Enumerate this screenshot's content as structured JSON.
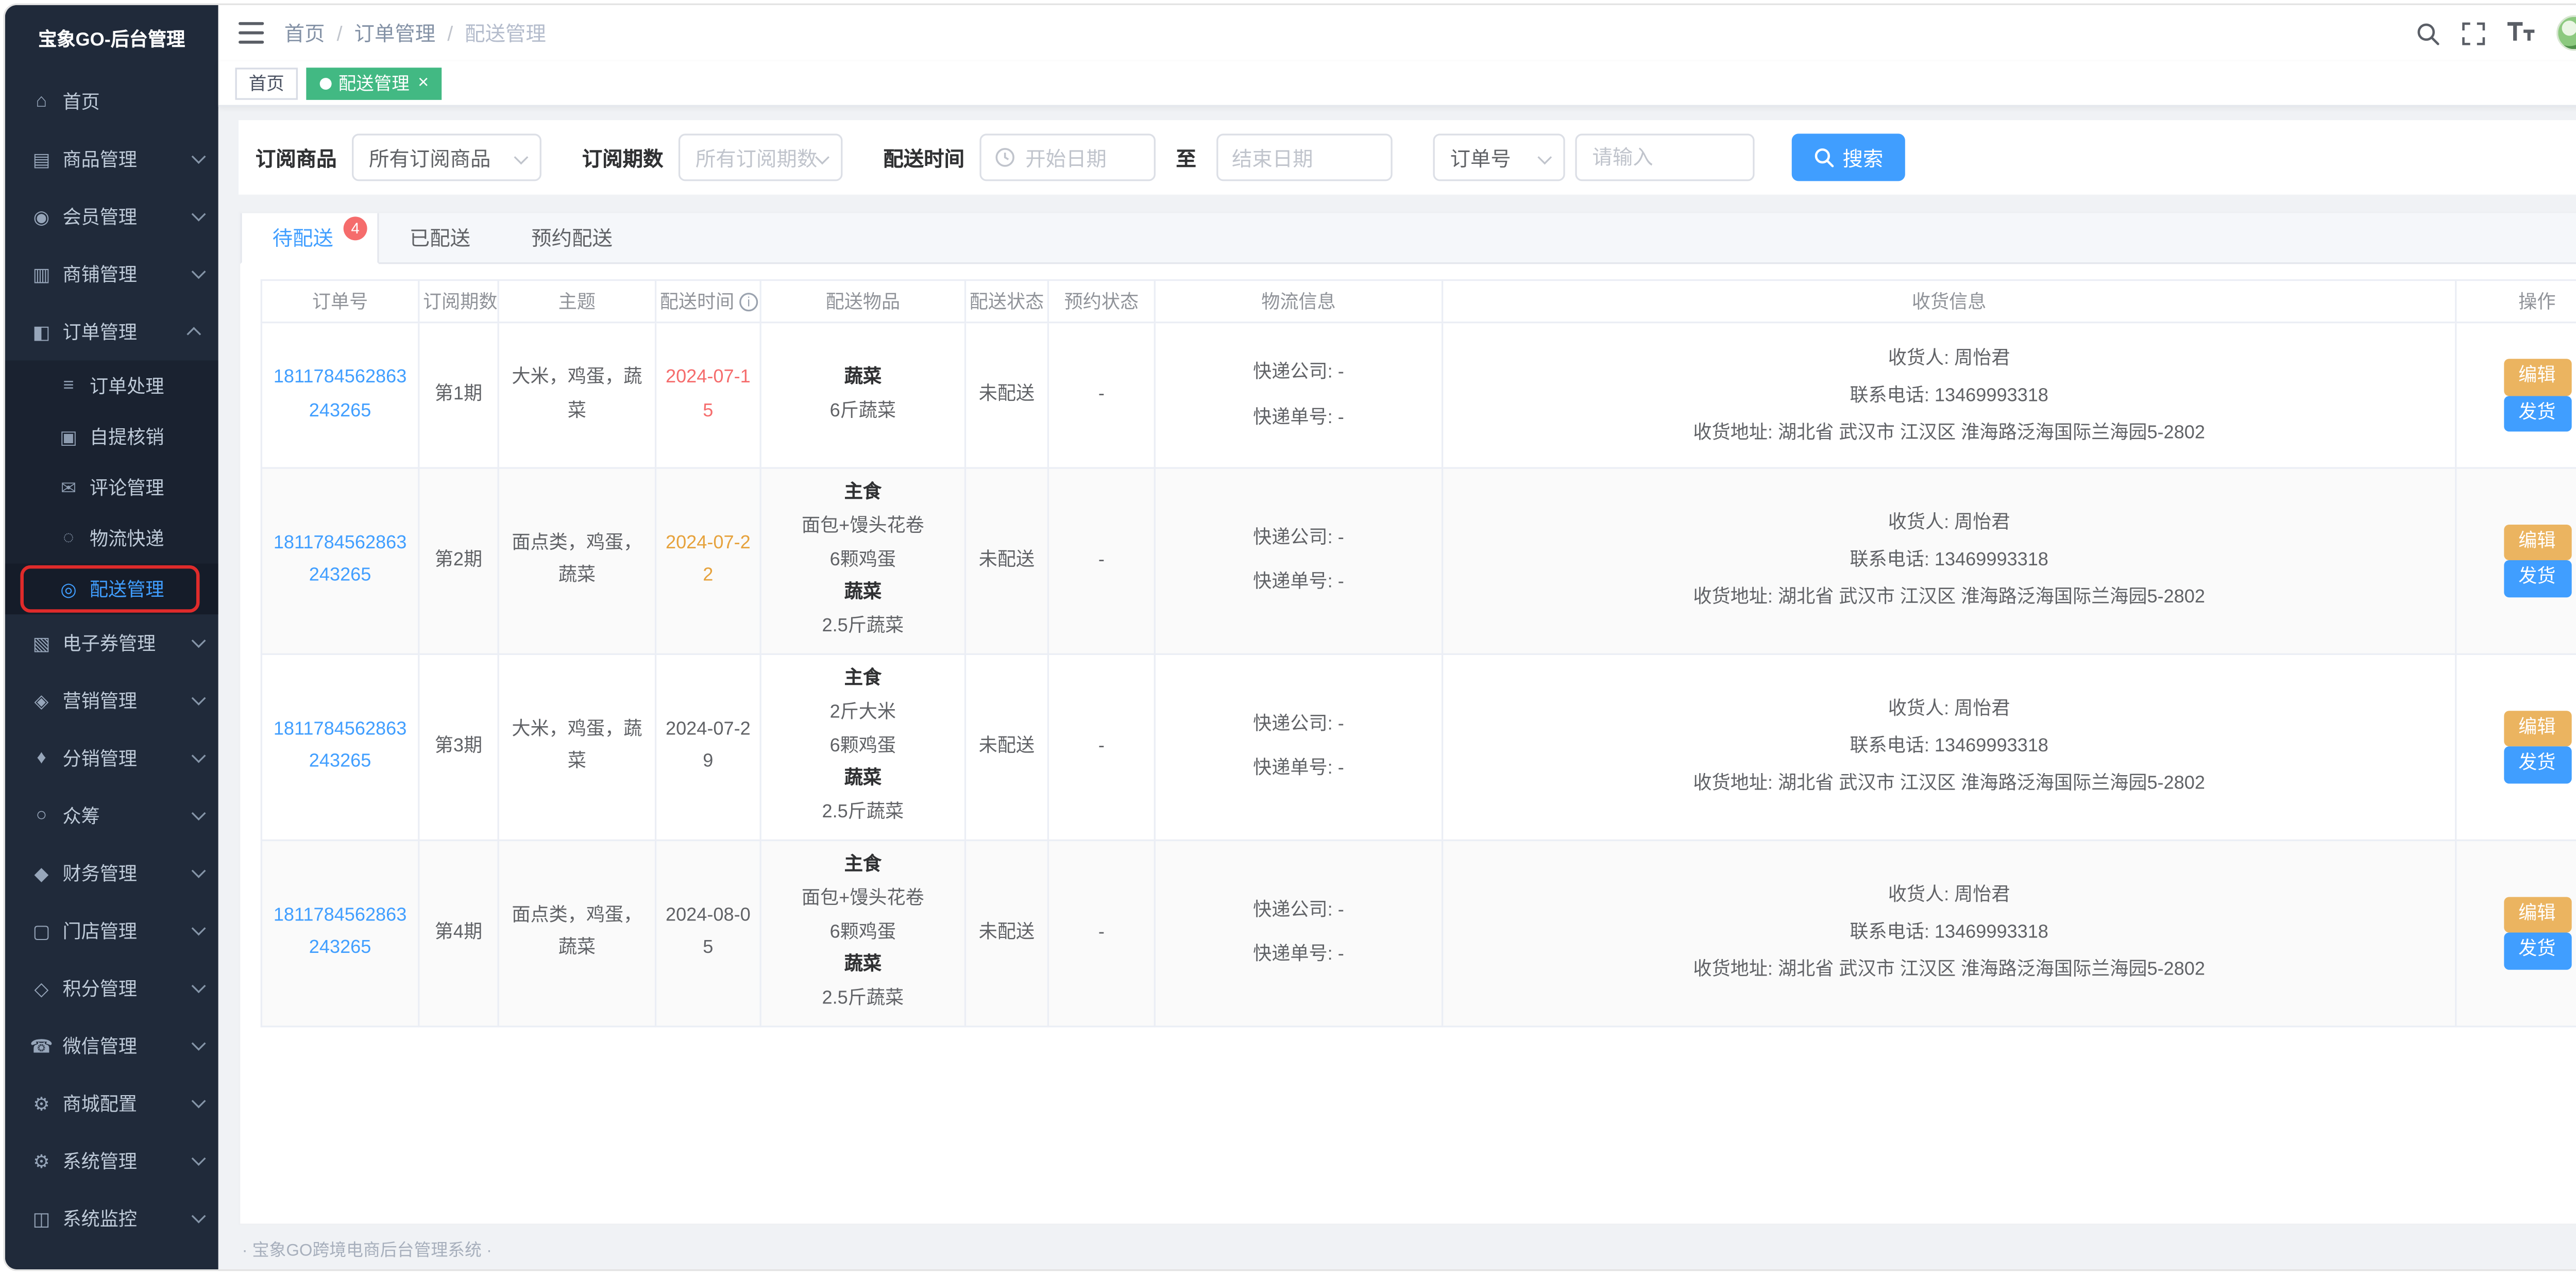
{
  "app": {
    "title": "宝象GO-后台管理",
    "footer": "· 宝象GO跨境电商后台管理系统 ·"
  },
  "colors": {
    "primary": "#409eff",
    "warning": "#e6a23c",
    "danger": "#f56c6c",
    "tag_active_green": "#42b983",
    "sidebar_bg": "#202a3a",
    "highlight_annotation": "#e02b2b"
  },
  "navbar": {
    "breadcrumb": [
      "首页",
      "订单管理",
      "配送管理"
    ],
    "separator": "/"
  },
  "tags_view": [
    {
      "key": "home",
      "label": "首页",
      "active": false,
      "closable": false
    },
    {
      "key": "delivery-manage",
      "label": "配送管理",
      "active": true,
      "closable": true
    }
  ],
  "sidebar": {
    "items": [
      {
        "key": "home",
        "label": "首页",
        "icon": "home-icon"
      },
      {
        "key": "goods",
        "label": "商品管理",
        "icon": "goods-icon",
        "arrow": true
      },
      {
        "key": "members",
        "label": "会员管理",
        "icon": "members-icon",
        "arrow": true
      },
      {
        "key": "shop",
        "label": "商铺管理",
        "icon": "shop-icon",
        "arrow": true
      },
      {
        "key": "orders",
        "label": "订单管理",
        "icon": "orders-icon",
        "arrow": true,
        "expanded": true,
        "children": [
          {
            "key": "order-process",
            "label": "订单处理",
            "icon": "order-process-icon"
          },
          {
            "key": "pickup-verify",
            "label": "自提核销",
            "icon": "pickup-verify-icon"
          },
          {
            "key": "comment-manage",
            "label": "评论管理",
            "icon": "comment-manage-icon"
          },
          {
            "key": "logistics-express",
            "label": "物流快递",
            "icon": "logistics-express-icon"
          },
          {
            "key": "delivery-manage",
            "label": "配送管理",
            "icon": "delivery-manage-icon",
            "active": true,
            "highlight": true
          }
        ]
      },
      {
        "key": "coupons",
        "label": "电子券管理",
        "icon": "coupons-icon",
        "arrow": true
      },
      {
        "key": "marketing",
        "label": "营销管理",
        "icon": "marketing-icon",
        "arrow": true
      },
      {
        "key": "distribution",
        "label": "分销管理",
        "icon": "distribution-icon",
        "arrow": true
      },
      {
        "key": "crowdfunding",
        "label": "众筹",
        "icon": "crowdfunding-icon",
        "arrow": true
      },
      {
        "key": "finance",
        "label": "财务管理",
        "icon": "finance-icon",
        "arrow": true
      },
      {
        "key": "stores",
        "label": "门店管理",
        "icon": "stores-icon",
        "arrow": true
      },
      {
        "key": "points",
        "label": "积分管理",
        "icon": "points-icon",
        "arrow": true
      },
      {
        "key": "wechat",
        "label": "微信管理",
        "icon": "wechat-icon",
        "arrow": true
      },
      {
        "key": "mall-config",
        "label": "商城配置",
        "icon": "mall-config-icon",
        "arrow": true
      },
      {
        "key": "system",
        "label": "系统管理",
        "icon": "system-icon",
        "arrow": true
      },
      {
        "key": "monitor",
        "label": "系统监控",
        "icon": "monitor-icon",
        "arrow": true
      }
    ]
  },
  "filters": {
    "subscribe_goods_label": "订阅商品",
    "subscribe_goods_value": "所有订阅商品",
    "subscribe_period_label": "订阅期数",
    "subscribe_period_placeholder": "所有订阅期数",
    "delivery_time_label": "配送时间",
    "date_start_placeholder": "开始日期",
    "date_separator": "至",
    "date_end_placeholder": "结束日期",
    "order_field_value": "订单号",
    "keyword_placeholder": "请输入",
    "search_button": "搜索"
  },
  "tabs": [
    {
      "key": "pending",
      "label": "待配送",
      "badge": "4",
      "active": true
    },
    {
      "key": "delivered",
      "label": "已配送",
      "active": false
    },
    {
      "key": "scheduled",
      "label": "预约配送",
      "active": false
    }
  ],
  "table": {
    "headers": [
      "订单号",
      "订阅期数",
      "主题",
      "配送时间",
      "配送物品",
      "配送状态",
      "预约状态",
      "物流信息",
      "收货信息",
      "操作"
    ],
    "info_icon_header": "配送时间",
    "rows": [
      {
        "order_no": "1811784562863243265",
        "period": "第1期",
        "theme": "大米，鸡蛋，蔬菜",
        "delivery_date": "2024-07-15",
        "delivery_date_color": "#f56c6c",
        "items": [
          {
            "title": "蔬菜",
            "lines": [
              "6斤蔬菜"
            ]
          }
        ],
        "status": "未配送",
        "reservation": "-",
        "logistics": [
          "快递公司: -",
          "快递单号: -"
        ],
        "receiver": [
          "收货人: 周怡君",
          "联系电话: 13469993318",
          "收货地址: 湖北省 武汉市 江汉区 淮海路泛海国际兰海园5-2802"
        ],
        "actions": [
          {
            "label": "编辑",
            "type": "warning"
          },
          {
            "label": "发货",
            "type": "primary"
          }
        ]
      },
      {
        "order_no": "1811784562863243265",
        "period": "第2期",
        "theme": "面点类，鸡蛋，蔬菜",
        "delivery_date": "2024-07-22",
        "delivery_date_color": "#e6a23c",
        "items": [
          {
            "title": "主食",
            "lines": [
              "面包+馒头花卷",
              "6颗鸡蛋"
            ]
          },
          {
            "title": "蔬菜",
            "lines": [
              "2.5斤蔬菜"
            ]
          }
        ],
        "status": "未配送",
        "reservation": "-",
        "logistics": [
          "快递公司: -",
          "快递单号: -"
        ],
        "receiver": [
          "收货人: 周怡君",
          "联系电话: 13469993318",
          "收货地址: 湖北省 武汉市 江汉区 淮海路泛海国际兰海园5-2802"
        ],
        "actions": [
          {
            "label": "编辑",
            "type": "warning"
          },
          {
            "label": "发货",
            "type": "primary"
          }
        ]
      },
      {
        "order_no": "1811784562863243265",
        "period": "第3期",
        "theme": "大米，鸡蛋，蔬菜",
        "delivery_date": "2024-07-29",
        "delivery_date_color": "",
        "items": [
          {
            "title": "主食",
            "lines": [
              "2斤大米",
              "6颗鸡蛋"
            ]
          },
          {
            "title": "蔬菜",
            "lines": [
              "2.5斤蔬菜"
            ]
          }
        ],
        "status": "未配送",
        "reservation": "-",
        "logistics": [
          "快递公司: -",
          "快递单号: -"
        ],
        "receiver": [
          "收货人: 周怡君",
          "联系电话: 13469993318",
          "收货地址: 湖北省 武汉市 江汉区 淮海路泛海国际兰海园5-2802"
        ],
        "actions": [
          {
            "label": "编辑",
            "type": "warning"
          },
          {
            "label": "发货",
            "type": "primary"
          }
        ]
      },
      {
        "order_no": "1811784562863243265",
        "period": "第4期",
        "theme": "面点类，鸡蛋，蔬菜",
        "delivery_date": "2024-08-05",
        "delivery_date_color": "",
        "items": [
          {
            "title": "主食",
            "lines": [
              "面包+馒头花卷",
              "6颗鸡蛋"
            ]
          },
          {
            "title": "蔬菜",
            "lines": [
              "2.5斤蔬菜"
            ]
          }
        ],
        "status": "未配送",
        "reservation": "-",
        "logistics": [
          "快递公司: -",
          "快递单号: -"
        ],
        "receiver": [
          "收货人: 周怡君",
          "联系电话: 13469993318",
          "收货地址: 湖北省 武汉市 江汉区 淮海路泛海国际兰海园5-2802"
        ],
        "actions": [
          {
            "label": "编辑",
            "type": "warning"
          },
          {
            "label": "发货",
            "type": "primary"
          }
        ]
      }
    ]
  }
}
